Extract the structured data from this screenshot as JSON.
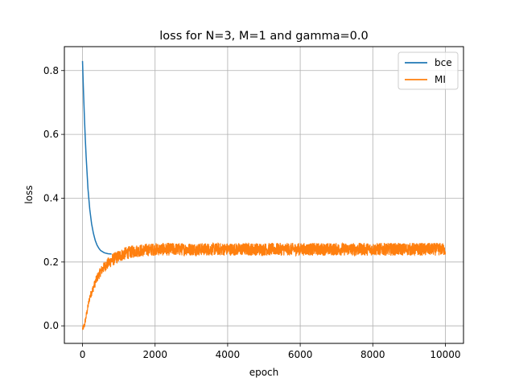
{
  "chart_data": {
    "type": "line",
    "title": "loss for N=3, M=1 and gamma=0.0",
    "xlabel": "epoch",
    "ylabel": "loss",
    "xlim": [
      -500,
      10500
    ],
    "ylim": [
      -0.055,
      0.875
    ],
    "xticks": [
      0,
      2000,
      4000,
      6000,
      8000,
      10000
    ],
    "xtick_labels": [
      "0",
      "2000",
      "4000",
      "6000",
      "8000",
      "10000"
    ],
    "yticks": [
      0.0,
      0.2,
      0.4,
      0.6,
      0.8
    ],
    "ytick_labels": [
      "0.0",
      "0.2",
      "0.4",
      "0.6",
      "0.8"
    ],
    "grid": true,
    "legend_position": "top-right",
    "series": [
      {
        "name": "bce",
        "color": "#1f77b4",
        "points": [
          [
            0,
            0.83
          ],
          [
            25,
            0.74
          ],
          [
            50,
            0.66
          ],
          [
            75,
            0.59
          ],
          [
            100,
            0.53
          ],
          [
            150,
            0.43
          ],
          [
            200,
            0.365
          ],
          [
            250,
            0.32
          ],
          [
            300,
            0.29
          ],
          [
            350,
            0.268
          ],
          [
            400,
            0.253
          ],
          [
            450,
            0.243
          ],
          [
            500,
            0.236
          ],
          [
            600,
            0.229
          ],
          [
            700,
            0.226
          ],
          [
            800,
            0.225
          ]
        ]
      },
      {
        "name": "MI",
        "color": "#ff7f0e",
        "trend_points": [
          [
            0,
            -0.01
          ],
          [
            50,
            0.0
          ],
          [
            100,
            0.03
          ],
          [
            150,
            0.06
          ],
          [
            200,
            0.09
          ],
          [
            300,
            0.12
          ],
          [
            400,
            0.15
          ],
          [
            500,
            0.17
          ],
          [
            600,
            0.185
          ],
          [
            700,
            0.195
          ],
          [
            800,
            0.205
          ],
          [
            1000,
            0.218
          ],
          [
            1200,
            0.228
          ],
          [
            1500,
            0.235
          ],
          [
            2000,
            0.24
          ],
          [
            10000,
            0.24
          ]
        ],
        "noise_amplitude": 0.02
      }
    ]
  }
}
